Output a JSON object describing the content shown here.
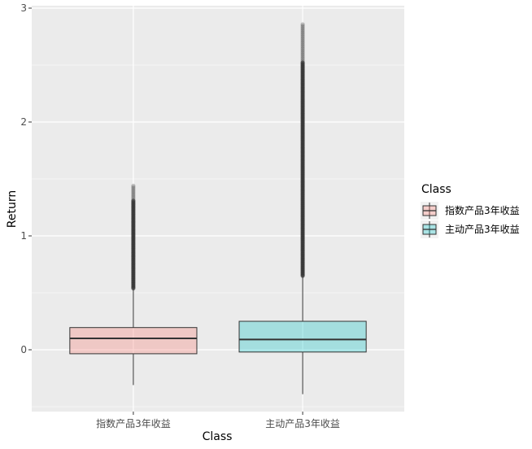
{
  "chart_data": {
    "type": "boxplot",
    "title": "",
    "xlabel": "Class",
    "ylabel": "Return",
    "ylim": [
      -0.58,
      3.0
    ],
    "yticks": [
      0,
      1,
      2,
      3
    ],
    "grid": true,
    "legend": {
      "title": "Class",
      "position": "right"
    },
    "categories": [
      "指数产品3年收益",
      "主动产品3年收益"
    ],
    "series": [
      {
        "name": "指数产品3年收益",
        "color": "#F8766D",
        "min": -0.31,
        "q1": -0.035,
        "median": 0.1,
        "q3": 0.195,
        "max": 0.54,
        "outliers_range": [
          0.54,
          1.45
        ]
      },
      {
        "name": "主动产品3年收益",
        "color": "#00BFC4",
        "min": -0.39,
        "q1": -0.02,
        "median": 0.09,
        "q3": 0.25,
        "max": 0.65,
        "outliers_range": [
          0.65,
          2.86
        ]
      }
    ]
  }
}
